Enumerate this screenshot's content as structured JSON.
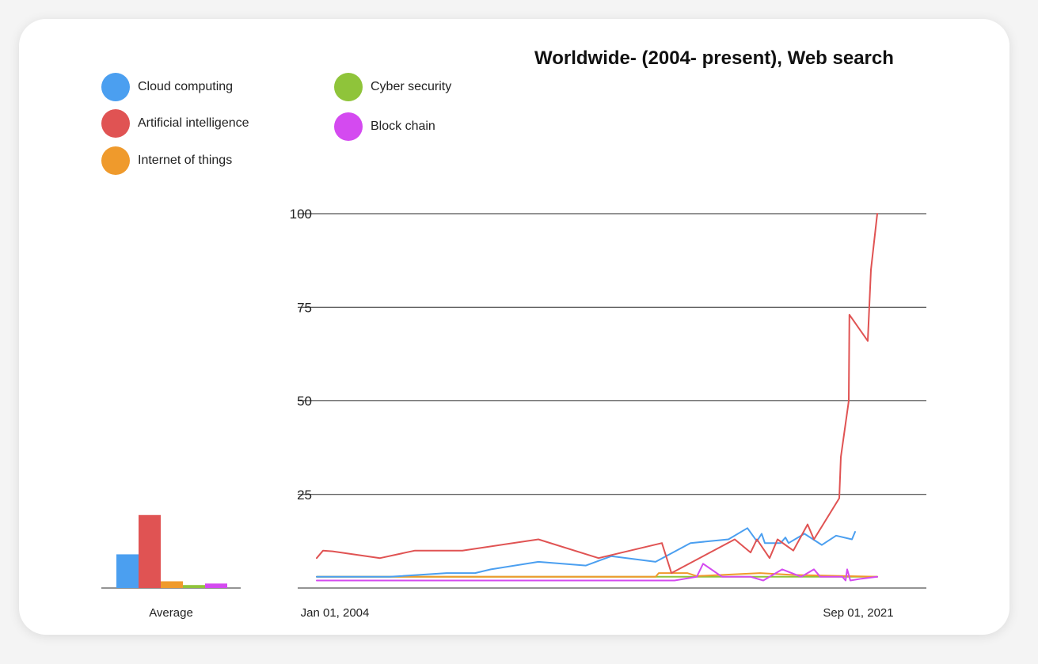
{
  "chart_data": {
    "type": "line",
    "title": "Worldwide- (2004- present), Web search",
    "xlabel": "",
    "ylabel": "",
    "x_range": [
      2004.0,
      2021.7
    ],
    "ylim": [
      0,
      100
    ],
    "y_ticks": [
      "25",
      "50",
      "75",
      "100"
    ],
    "x_tick_labels": [
      "Jan 01, 2004",
      "Sep 01, 2021"
    ],
    "grid": true,
    "legend_position": "top-left",
    "series": [
      {
        "name": "Cloud computing",
        "color": "#4b9ff0",
        "points": [
          [
            2004.0,
            3
          ],
          [
            2006.3,
            3
          ],
          [
            2008.1,
            4
          ],
          [
            2009.0,
            4
          ],
          [
            2009.5,
            5
          ],
          [
            2011.0,
            7
          ],
          [
            2012.5,
            6
          ],
          [
            2013.3,
            8.5
          ],
          [
            2014.7,
            7
          ],
          [
            2015.8,
            12
          ],
          [
            2017.0,
            13
          ],
          [
            2017.6,
            16
          ],
          [
            2017.9,
            12.5
          ],
          [
            2018.05,
            14.5
          ],
          [
            2018.15,
            12
          ],
          [
            2018.65,
            12
          ],
          [
            2018.8,
            13.5
          ],
          [
            2018.9,
            12
          ],
          [
            2019.4,
            14.5
          ],
          [
            2019.95,
            11.5
          ],
          [
            2020.4,
            14
          ],
          [
            2020.9,
            13
          ],
          [
            2021.0,
            15
          ]
        ]
      },
      {
        "name": "Artificial intelligence",
        "color": "#e05353",
        "points": [
          [
            2004.0,
            8
          ],
          [
            2004.2,
            10
          ],
          [
            2004.5,
            9.8
          ],
          [
            2006.0,
            8
          ],
          [
            2007.1,
            10
          ],
          [
            2008.6,
            10
          ],
          [
            2011.0,
            13
          ],
          [
            2012.9,
            8
          ],
          [
            2014.9,
            12
          ],
          [
            2015.2,
            4
          ],
          [
            2017.2,
            13
          ],
          [
            2017.7,
            9.5
          ],
          [
            2017.9,
            13
          ],
          [
            2018.3,
            8
          ],
          [
            2018.55,
            13
          ],
          [
            2019.05,
            10
          ],
          [
            2019.5,
            17
          ],
          [
            2019.7,
            13
          ],
          [
            2020.5,
            24
          ],
          [
            2020.55,
            35
          ],
          [
            2020.8,
            50
          ],
          [
            2020.82,
            73
          ],
          [
            2021.4,
            66
          ],
          [
            2021.5,
            85
          ],
          [
            2021.7,
            100
          ]
        ]
      },
      {
        "name": "Internet of things",
        "color": "#ef9a2c",
        "points": [
          [
            2004.0,
            3
          ],
          [
            2014.7,
            3
          ],
          [
            2014.8,
            4
          ],
          [
            2015.7,
            4
          ],
          [
            2016.0,
            3.2
          ],
          [
            2018.0,
            4
          ],
          [
            2019.0,
            3.5
          ],
          [
            2021.7,
            3
          ]
        ]
      },
      {
        "name": "Cyber security",
        "color": "#8fc43a",
        "points": [
          [
            2004.0,
            3
          ],
          [
            2016.0,
            3
          ],
          [
            2018.5,
            3
          ],
          [
            2021.7,
            3
          ]
        ]
      },
      {
        "name": "Block chain",
        "color": "#d44af0",
        "points": [
          [
            2004.0,
            2
          ],
          [
            2015.3,
            2
          ],
          [
            2016.0,
            3
          ],
          [
            2016.2,
            6.5
          ],
          [
            2016.8,
            3
          ],
          [
            2017.7,
            3
          ],
          [
            2018.1,
            2
          ],
          [
            2018.7,
            5
          ],
          [
            2019.3,
            3
          ],
          [
            2019.7,
            5
          ],
          [
            2019.9,
            3
          ],
          [
            2020.6,
            3
          ],
          [
            2020.7,
            2
          ],
          [
            2020.75,
            5
          ],
          [
            2020.85,
            2
          ],
          [
            2021.2,
            2.5
          ],
          [
            2021.7,
            3
          ]
        ]
      }
    ],
    "average_bars": {
      "label": "Average",
      "values": [
        9,
        19.5,
        1.8,
        0.8,
        1.2
      ],
      "max": 100
    }
  }
}
